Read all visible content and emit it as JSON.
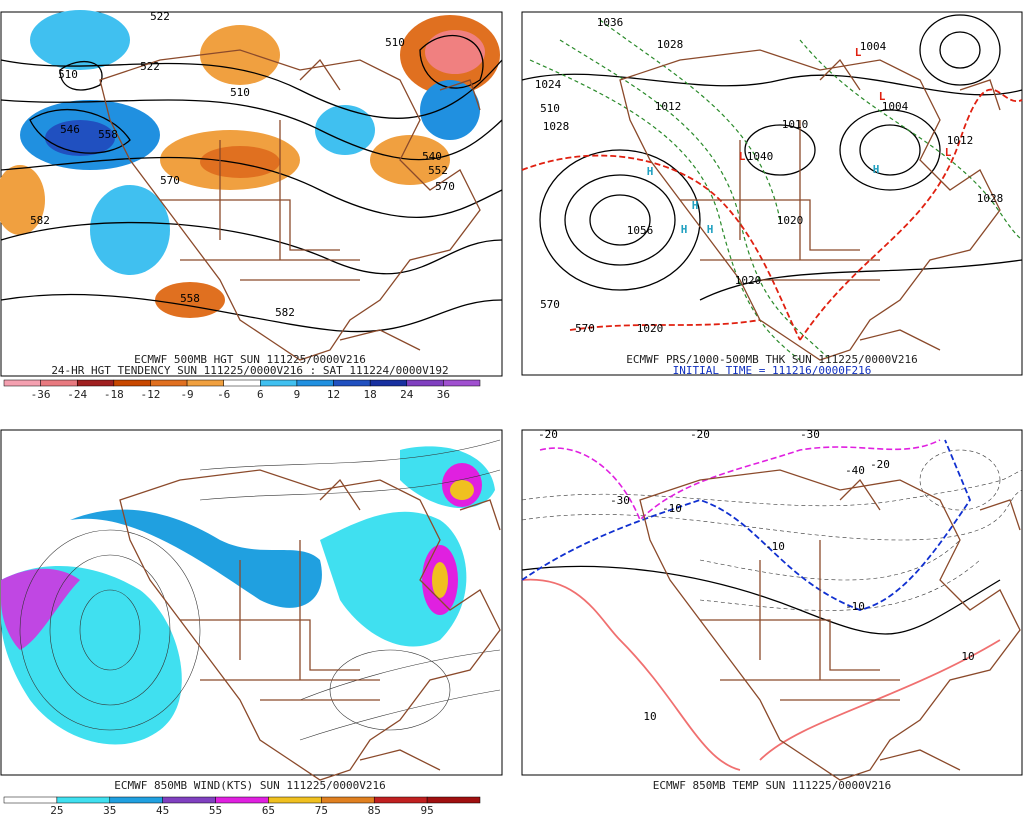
{
  "panel_500mb": {
    "caption": "ECMWF 500MB HGT SUN 111225/0000V216",
    "subcaption": "24-HR HGT TENDENCY SUN 111225/0000V216 : SAT 111224/0000V192",
    "contour_labels": [
      "522",
      "510",
      "522",
      "546",
      "558",
      "570",
      "582",
      "558",
      "582",
      "510",
      "510",
      "540",
      "552",
      "570"
    ],
    "colorbar": {
      "labels": [
        "-36",
        "-24",
        "-18",
        "-12",
        "-9",
        "-6",
        "6",
        "9",
        "12",
        "18",
        "24",
        "36"
      ],
      "colors": [
        "#f4a0b0",
        "#e87a80",
        "#a02020",
        "#c84800",
        "#e07020",
        "#f0a040",
        "#ffffff",
        "#40c0f0",
        "#2090e0",
        "#2050c0",
        "#1830a0",
        "#8040c0",
        "#a050d0"
      ]
    }
  },
  "panel_thickness": {
    "caption": "ECMWF PRS/1000-500MB THK SUN 111225/0000V216",
    "subcaption": "INITIAL TIME = 111216/0000F216",
    "contour_labels": [
      "1036",
      "1028",
      "1024",
      "1012",
      "1028",
      "510",
      "1010",
      "1040",
      "1020",
      "1056",
      "1028",
      "1020",
      "570",
      "570",
      "1020",
      "1004",
      "1004",
      "1012"
    ],
    "highs": [
      "H",
      "H",
      "H",
      "H",
      "H"
    ],
    "lows": [
      "L",
      "L",
      "L",
      "L"
    ]
  },
  "panel_wind": {
    "caption": "ECMWF 850MB WIND(KTS) SUN 111225/0000V216",
    "colorbar": {
      "labels": [
        "25",
        "35",
        "45",
        "55",
        "65",
        "75",
        "85",
        "95"
      ],
      "colors": [
        "#ffffff",
        "#40e0f0",
        "#20a0e0",
        "#8040c0",
        "#e020e0",
        "#f0c020",
        "#e08020",
        "#c02020",
        "#a01010"
      ]
    }
  },
  "panel_temp": {
    "caption": "ECMWF 850MB TEMP SUN 111225/0000V216",
    "contour_labels": [
      "-20",
      "-20",
      "-30",
      "-20",
      "-40",
      "-30",
      "-10",
      "-10",
      "-10",
      "10",
      "10"
    ]
  }
}
